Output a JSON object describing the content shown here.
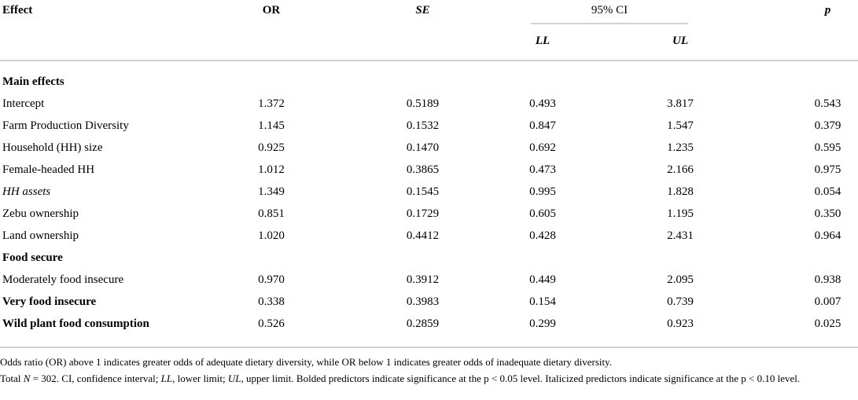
{
  "colors": {
    "background": "#ffffff",
    "text": "#000000",
    "rule": "#d2d2d2"
  },
  "table": {
    "header": {
      "effect": "Effect",
      "or": "OR",
      "se": "SE",
      "ci": "95% CI",
      "ll": "LL",
      "ul": "UL",
      "p": "p"
    },
    "rows": [
      {
        "label": "Main effects",
        "style": "section",
        "or": "",
        "se": "",
        "ll": "",
        "ul": "",
        "p": ""
      },
      {
        "label": "Intercept",
        "style": "normal",
        "or": "1.372",
        "se": "0.5189",
        "ll": "0.493",
        "ul": "3.817",
        "p": "0.543"
      },
      {
        "label": "Farm Production Diversity",
        "style": "normal",
        "or": "1.145",
        "se": "0.1532",
        "ll": "0.847",
        "ul": "1.547",
        "p": "0.379"
      },
      {
        "label": "Household (HH) size",
        "style": "normal",
        "or": "0.925",
        "se": "0.1470",
        "ll": "0.692",
        "ul": "1.235",
        "p": "0.595"
      },
      {
        "label": "Female-headed HH",
        "style": "normal",
        "or": "1.012",
        "se": "0.3865",
        "ll": "0.473",
        "ul": "2.166",
        "p": "0.975"
      },
      {
        "label": "HH assets",
        "style": "italic",
        "or": "1.349",
        "se": "0.1545",
        "ll": "0.995",
        "ul": "1.828",
        "p": "0.054"
      },
      {
        "label": "Zebu ownership",
        "style": "normal",
        "or": "0.851",
        "se": "0.1729",
        "ll": "0.605",
        "ul": "1.195",
        "p": "0.350"
      },
      {
        "label": "Land ownership",
        "style": "normal",
        "or": "1.020",
        "se": "0.4412",
        "ll": "0.428",
        "ul": "2.431",
        "p": "0.964"
      },
      {
        "label": "Food secure",
        "style": "section",
        "or": "",
        "se": "",
        "ll": "",
        "ul": "",
        "p": ""
      },
      {
        "label": "Moderately food insecure",
        "style": "normal",
        "or": "0.970",
        "se": "0.3912",
        "ll": "0.449",
        "ul": "2.095",
        "p": "0.938"
      },
      {
        "label": "Very food insecure",
        "style": "bold",
        "or": "0.338",
        "se": "0.3983",
        "ll": "0.154",
        "ul": "0.739",
        "p": "0.007"
      },
      {
        "label": "Wild plant food consumption",
        "style": "bold",
        "or": "0.526",
        "se": "0.2859",
        "ll": "0.299",
        "ul": "0.923",
        "p": "0.025"
      }
    ]
  },
  "footnotes": {
    "line1": "Odds ratio (OR) above 1 indicates greater odds of adequate dietary diversity, while OR below 1 indicates greater odds of inadequate dietary diversity.",
    "line2_segments": [
      {
        "text": "Total ",
        "italic": false
      },
      {
        "text": "N",
        "italic": true
      },
      {
        "text": " = 302. CI, confidence interval; ",
        "italic": false
      },
      {
        "text": "LL",
        "italic": true
      },
      {
        "text": ", lower limit; ",
        "italic": false
      },
      {
        "text": "UL",
        "italic": true
      },
      {
        "text": ", upper limit. Bolded predictors indicate significance at the p < 0.05 level. Italicized predictors indicate significance at the p < 0.10 level.",
        "italic": false
      }
    ]
  }
}
